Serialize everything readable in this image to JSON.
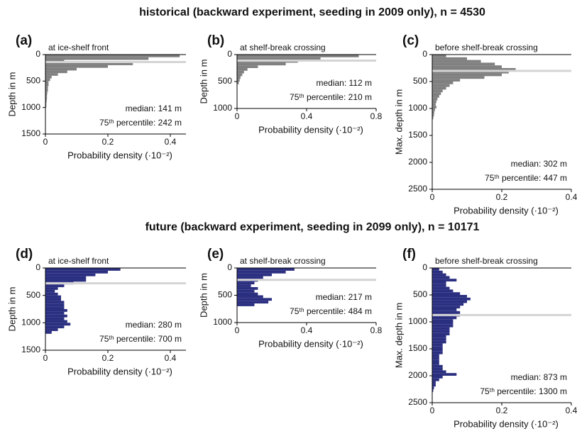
{
  "headings": [
    "historical (backward experiment, seeding in 2009 only), n = 4530",
    "future (backward experiment, seeding in 2099 only), n = 10171"
  ],
  "chart_data": [
    {
      "type": "histogram",
      "orientation": "horizontal",
      "panel_label": "(a)",
      "title": "at ice-shelf front",
      "xlabel": "Probability density (·10⁻²)",
      "ylabel": "Depth in m",
      "bins": [
        0,
        50,
        100,
        150,
        200,
        250,
        300,
        350,
        400,
        450,
        500,
        550,
        600,
        650,
        700,
        750,
        800,
        850,
        900,
        950,
        1000
      ],
      "values": [
        0.43,
        0.33,
        0.06,
        0.28,
        0.2,
        0.1,
        0.07,
        0.04,
        0.02,
        0.015,
        0.01,
        0.01,
        0.008,
        0.008,
        0.006,
        0.005,
        0.005,
        0.004,
        0.003,
        0.003
      ],
      "color": "#808080",
      "median": 141,
      "median_color": "#d4d4d4",
      "annotations": [
        "median: 141 m",
        "75ᵗʰ percentile: 242 m"
      ],
      "xlim": [
        0,
        0.45
      ],
      "xticks": [
        0,
        0.2,
        0.4
      ],
      "ylim": [
        0,
        1500
      ],
      "yticks": [
        0,
        500,
        1000,
        1500
      ]
    },
    {
      "type": "histogram",
      "orientation": "horizontal",
      "panel_label": "(b)",
      "title": "at shelf-break crossing",
      "xlabel": "Probability density (·10⁻²)",
      "ylabel": "Depth in m",
      "bins": [
        0,
        50,
        100,
        150,
        200,
        250,
        300,
        350,
        400,
        450,
        500,
        550
      ],
      "values": [
        0.7,
        0.48,
        0.35,
        0.28,
        0.12,
        0.06,
        0.04,
        0.03,
        0.02,
        0.015,
        0.01
      ],
      "color": "#808080",
      "median": 112,
      "median_color": "#d4d4d4",
      "annotations": [
        "median: 112 m",
        "75ᵗʰ percentile: 210 m"
      ],
      "xlim": [
        0,
        0.8
      ],
      "xticks": [
        0,
        0.4,
        0.8
      ],
      "ylim": [
        0,
        1000
      ],
      "yticks": [
        0,
        500,
        1000
      ]
    },
    {
      "type": "histogram",
      "orientation": "horizontal",
      "panel_label": "(c)",
      "title": "before shelf-break crossing",
      "xlabel": "Probability density (·10⁻²)",
      "ylabel": "Max. depth in m",
      "bins": [
        0,
        50,
        100,
        150,
        200,
        250,
        300,
        350,
        400,
        450,
        500,
        550,
        600,
        650,
        700,
        750,
        800,
        850,
        900,
        950,
        1000,
        1050,
        1100,
        1150,
        1200
      ],
      "values": [
        0.04,
        0.1,
        0.14,
        0.18,
        0.2,
        0.24,
        0.22,
        0.2,
        0.15,
        0.08,
        0.06,
        0.05,
        0.04,
        0.03,
        0.025,
        0.02,
        0.015,
        0.012,
        0.01,
        0.012,
        0.008,
        0.006,
        0.005,
        0.003
      ],
      "color": "#808080",
      "median": 302,
      "median_color": "#d4d4d4",
      "annotations": [
        "median: 302 m",
        "75ᵗʰ percentile: 447 m"
      ],
      "xlim": [
        0,
        0.4
      ],
      "xticks": [
        0,
        0.2,
        0.4
      ],
      "ylim": [
        0,
        2500
      ],
      "yticks": [
        0,
        500,
        1000,
        1500,
        2000,
        2500
      ]
    },
    {
      "type": "histogram",
      "orientation": "horizontal",
      "panel_label": "(d)",
      "title": "at ice-shelf front",
      "xlabel": "Probability density (·10⁻²)",
      "ylabel": "Depth in m",
      "bins": [
        0,
        50,
        100,
        150,
        200,
        250,
        300,
        350,
        400,
        450,
        500,
        550,
        600,
        650,
        700,
        750,
        800,
        850,
        900,
        950,
        1000,
        1050,
        1100,
        1150,
        1200
      ],
      "values": [
        0.24,
        0.2,
        0.16,
        0.13,
        0.13,
        0.09,
        0.06,
        0.04,
        0.03,
        0.04,
        0.05,
        0.05,
        0.06,
        0.06,
        0.06,
        0.07,
        0.06,
        0.07,
        0.06,
        0.07,
        0.08,
        0.06,
        0.04,
        0.02
      ],
      "color": "#2b2f80",
      "median": 280,
      "median_color": "#d4d4d4",
      "annotations": [
        "median: 280 m",
        "75ᵗʰ percentile: 700 m"
      ],
      "xlim": [
        0,
        0.45
      ],
      "xticks": [
        0,
        0.2,
        0.4
      ],
      "ylim": [
        0,
        1500
      ],
      "yticks": [
        0,
        500,
        1000,
        1500
      ]
    },
    {
      "type": "histogram",
      "orientation": "horizontal",
      "panel_label": "(e)",
      "title": "at shelf-break crossing",
      "xlabel": "Probability density (·10⁻²)",
      "ylabel": "Depth in m",
      "bins": [
        0,
        50,
        100,
        150,
        200,
        250,
        300,
        350,
        400,
        450,
        500,
        550,
        600,
        650,
        700
      ],
      "values": [
        0.33,
        0.28,
        0.2,
        0.15,
        0.12,
        0.1,
        0.08,
        0.12,
        0.1,
        0.12,
        0.15,
        0.2,
        0.18,
        0.1
      ],
      "color": "#2b2f80",
      "median": 217,
      "median_color": "#d4d4d4",
      "annotations": [
        "median: 217 m",
        "75ᵗʰ percentile: 484 m"
      ],
      "xlim": [
        0,
        0.8
      ],
      "xticks": [
        0,
        0.4,
        0.8
      ],
      "ylim": [
        0,
        1000
      ],
      "yticks": [
        0,
        500,
        1000
      ]
    },
    {
      "type": "histogram",
      "orientation": "horizontal",
      "panel_label": "(f)",
      "title": "before shelf-break crossing",
      "xlabel": "Probability density (·10⁻²)",
      "ylabel": "Max. depth in m",
      "bins": [
        0,
        50,
        100,
        150,
        200,
        250,
        300,
        350,
        400,
        450,
        500,
        550,
        600,
        650,
        700,
        750,
        800,
        850,
        900,
        950,
        1000,
        1050,
        1100,
        1150,
        1200,
        1250,
        1300,
        1350,
        1400,
        1450,
        1500,
        1550,
        1600,
        1650,
        1700,
        1750,
        1800,
        1850,
        1900,
        1950,
        2000,
        2050,
        2100,
        2150,
        2200,
        2250,
        2300
      ],
      "values": [
        0.02,
        0.03,
        0.04,
        0.05,
        0.07,
        0.04,
        0.04,
        0.05,
        0.06,
        0.08,
        0.1,
        0.11,
        0.1,
        0.09,
        0.08,
        0.07,
        0.08,
        0.08,
        0.07,
        0.06,
        0.06,
        0.06,
        0.05,
        0.05,
        0.05,
        0.04,
        0.04,
        0.04,
        0.03,
        0.03,
        0.03,
        0.03,
        0.02,
        0.02,
        0.02,
        0.02,
        0.03,
        0.03,
        0.04,
        0.07,
        0.03,
        0.02,
        0.01,
        0.01,
        0.005,
        0.003
      ],
      "color": "#2b2f80",
      "median": 873,
      "median_color": "#d4d4d4",
      "annotations": [
        "median: 873 m",
        "75ᵗʰ percentile: 1300 m"
      ],
      "xlim": [
        0,
        0.4
      ],
      "xticks": [
        0,
        0.2,
        0.4
      ],
      "ylim": [
        0,
        2500
      ],
      "yticks": [
        0,
        500,
        1000,
        1500,
        2000,
        2500
      ]
    }
  ]
}
